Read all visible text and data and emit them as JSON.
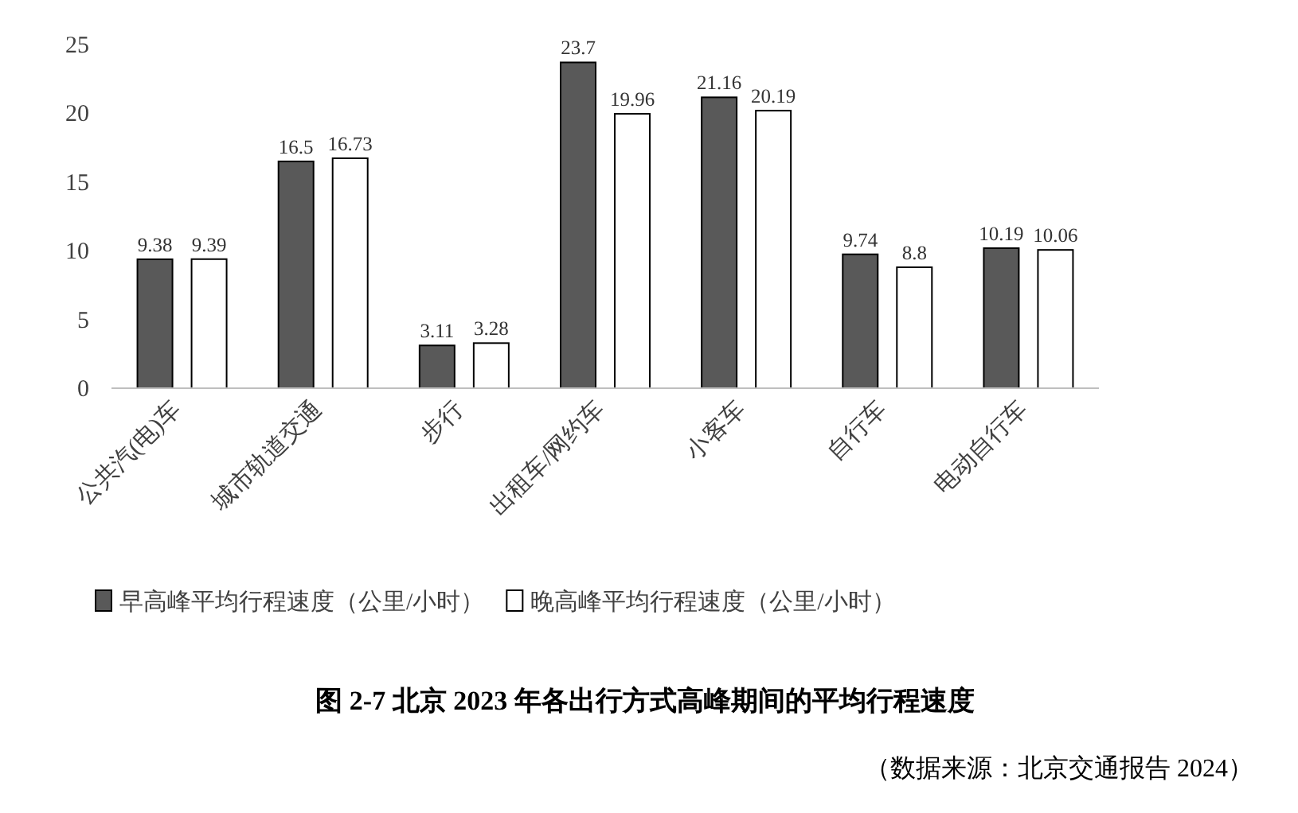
{
  "chart_data": {
    "type": "bar",
    "title": "图 2-7  北京 2023 年各出行方式高峰期间的平均行程速度",
    "categories": [
      "公共汽(电)车",
      "城市轨道交通",
      "步行",
      "出租车/网约车",
      "小客车",
      "自行车",
      "电动自行车"
    ],
    "series": [
      {
        "name": "早高峰平均行程速度（公里/小时）",
        "color": "#595959",
        "values": [
          9.38,
          16.5,
          3.11,
          23.7,
          21.16,
          9.74,
          10.19
        ]
      },
      {
        "name": "晚高峰平均行程速度（公里/小时）",
        "color": "#ffffff",
        "values": [
          9.39,
          16.73,
          3.28,
          19.96,
          20.19,
          8.8,
          10.06
        ]
      }
    ],
    "ylim": [
      0,
      25
    ],
    "yticks": [
      0,
      5,
      10,
      15,
      20,
      25
    ],
    "data_labels": true,
    "legend": "bottom",
    "grid": false,
    "annotations": [
      "（数据来源：北京交通报告 2024）"
    ]
  }
}
